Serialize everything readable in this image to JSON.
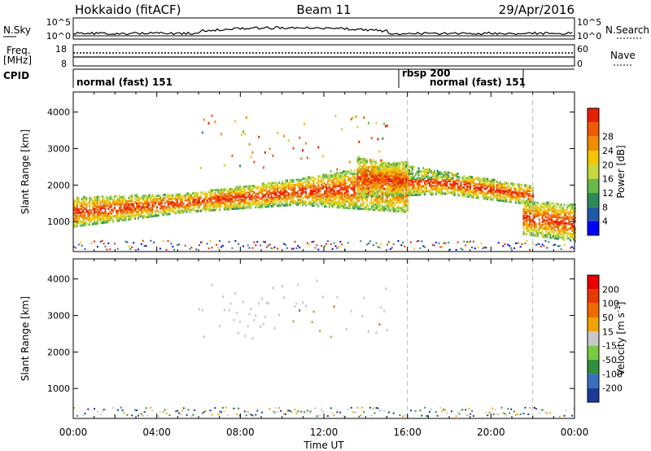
{
  "header": {
    "station": "Hokkaido (fitACF)",
    "beam": "Beam 11",
    "date": "29/Apr/2016"
  },
  "noise_panel": {
    "left_label": "N.Sky",
    "right_label": "N.Search",
    "left_ticks": [
      "10^5",
      "10^0"
    ],
    "right_ticks": [
      "10^5",
      "10^0"
    ]
  },
  "freq_panel": {
    "left_label_line1": "Freq.",
    "left_label_line2": "[MHz]",
    "left_ticks": [
      "18",
      "8"
    ],
    "right_label": "Nave",
    "right_ticks": [
      "60",
      "0"
    ]
  },
  "cpid_panel": {
    "label": "CPID",
    "segments": [
      {
        "text": "normal (fast) 151",
        "start_hour": 0
      },
      {
        "text": "rbsp 200",
        "start_hour": 16
      },
      {
        "text": "normal (fast) 151",
        "start_hour": 16.5
      }
    ]
  },
  "x_axis": {
    "label": "Time UT",
    "ticks": [
      "00:00",
      "04:00",
      "08:00",
      "12:00",
      "16:00",
      "20:00",
      "00:00"
    ]
  },
  "colors": {
    "frame": "#000000",
    "ground_grey": "#c8c8c8",
    "background": "#ffffff"
  },
  "chart_data": [
    {
      "type": "heatmap",
      "name": "power",
      "ylabel": "Slant Range [km]",
      "xlim_hours": [
        0,
        24
      ],
      "ylim_km": [
        180,
        4550
      ],
      "y_ticks": [
        1000,
        2000,
        3000,
        4000
      ],
      "colorbar": {
        "label": "Power [dB]",
        "ticks": [
          "4",
          "8",
          "12",
          "16",
          "20",
          "24",
          "28"
        ],
        "colors": [
          "#0000ff",
          "#1f5aa6",
          "#2e8b57",
          "#66b94a",
          "#c8d83c",
          "#f5c400",
          "#f08c00",
          "#ef5a00",
          "#e82000"
        ]
      },
      "bands": [
        {
          "t0": 0,
          "t1": 16.0,
          "low": [
            900,
            1300,
            1500,
            1300
          ],
          "high": [
            1700,
            1800,
            2200,
            2700
          ]
        },
        {
          "t0": 13.5,
          "t1": 22.0,
          "low": [
            1700,
            1800,
            1500
          ],
          "high": [
            2800,
            2400,
            2000
          ]
        },
        {
          "t0": 21.5,
          "t1": 24.0,
          "low": [
            700,
            500
          ],
          "high": [
            1600,
            1500
          ]
        }
      ]
    },
    {
      "type": "heatmap",
      "name": "velocity",
      "ylabel": "Slant Range [km]",
      "xlim_hours": [
        0,
        24
      ],
      "ylim_km": [
        180,
        4550
      ],
      "y_ticks": [
        1000,
        2000,
        3000,
        4000
      ],
      "colorbar": {
        "label": "Velocity [m s^-1]",
        "ticks": [
          "200",
          "100",
          "50",
          "15",
          "-15",
          "-50",
          "-100",
          "-200"
        ],
        "colors": [
          "#1a3a9a",
          "#3b6fb8",
          "#2f8f3a",
          "#7ac943",
          "#c8c8c8",
          "#f0a400",
          "#f06a00",
          "#e83a00",
          "#e80000"
        ]
      }
    }
  ]
}
